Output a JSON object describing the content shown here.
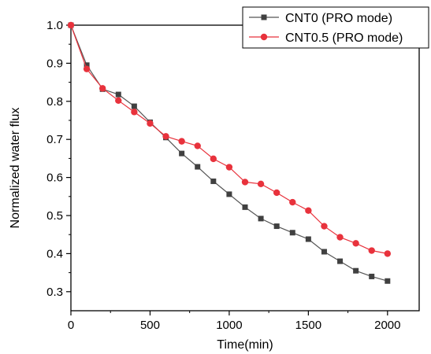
{
  "chart_data": {
    "type": "line",
    "title": "",
    "xlabel": "Time(min)",
    "ylabel": "Normalized water flux",
    "xlim": [
      0,
      2200
    ],
    "ylim": [
      0.25,
      1.0
    ],
    "x_ticks": [
      0,
      500,
      1000,
      1500,
      2000
    ],
    "y_ticks": [
      0.3,
      0.4,
      0.5,
      0.6,
      0.7,
      0.8,
      0.9,
      1.0
    ],
    "x_tick_labels": [
      "0",
      "500",
      "1000",
      "1500",
      "2000"
    ],
    "y_tick_labels": [
      "0.3",
      "0.4",
      "0.5",
      "0.6",
      "0.7",
      "0.8",
      "0.9",
      "1.0"
    ],
    "grid": false,
    "legend_position": "top-right",
    "x": [
      0,
      100,
      200,
      300,
      400,
      500,
      600,
      700,
      800,
      900,
      1000,
      1100,
      1200,
      1300,
      1400,
      1500,
      1600,
      1700,
      1800,
      1900,
      2000
    ],
    "series": [
      {
        "name": "CNT0 (PRO mode)",
        "marker": "square",
        "color": "#404040",
        "line_color": "#555555",
        "values": [
          1.0,
          0.895,
          0.832,
          0.818,
          0.787,
          0.745,
          0.705,
          0.663,
          0.628,
          0.59,
          0.556,
          0.522,
          0.492,
          0.472,
          0.455,
          0.438,
          0.405,
          0.38,
          0.355,
          0.34,
          0.328
        ]
      },
      {
        "name": "CNT0.5 (PRO mode)",
        "marker": "circle",
        "color": "#e8323c",
        "line_color": "#e8323c",
        "values": [
          1.0,
          0.885,
          0.834,
          0.802,
          0.772,
          0.742,
          0.708,
          0.695,
          0.683,
          0.649,
          0.627,
          0.588,
          0.583,
          0.56,
          0.535,
          0.513,
          0.472,
          0.443,
          0.427,
          0.408,
          0.4
        ]
      }
    ]
  }
}
